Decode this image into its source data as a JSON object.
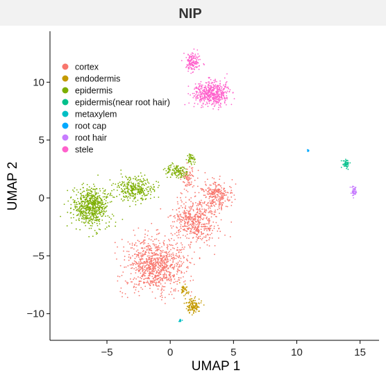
{
  "chart_data": {
    "type": "scatter",
    "title": "NIP",
    "xlabel": "UMAP 1",
    "ylabel": "UMAP 2",
    "xlim": [
      -9.5,
      16.5
    ],
    "ylim": [
      -12.3,
      14.4
    ],
    "x_ticks": [
      -5,
      0,
      5,
      10,
      15
    ],
    "y_ticks": [
      -10,
      -5,
      0,
      5,
      10
    ],
    "tick_labels_x": [
      "−5",
      "0",
      "5",
      "10",
      "15"
    ],
    "tick_labels_y": [
      "−10",
      "−5",
      "0",
      "5",
      "10"
    ],
    "grid": false,
    "legend_position": "top-left (inside)",
    "series": [
      {
        "name": "cortex",
        "color": "#F8766D",
        "clusters": [
          {
            "center": [
              -1.2,
              -5.8
            ],
            "spread": [
              2.2,
              2.1
            ],
            "count": 900
          },
          {
            "center": [
              2.0,
              -2.0
            ],
            "spread": [
              1.6,
              1.8
            ],
            "count": 500
          },
          {
            "center": [
              3.7,
              0.2
            ],
            "spread": [
              1.1,
              1.1
            ],
            "count": 250
          },
          {
            "center": [
              1.4,
              1.8
            ],
            "spread": [
              0.6,
              0.8
            ],
            "count": 80
          }
        ]
      },
      {
        "name": "endodermis",
        "color": "#C49A00",
        "clusters": [
          {
            "center": [
              1.8,
              -9.3
            ],
            "spread": [
              0.5,
              0.6
            ],
            "count": 120
          },
          {
            "center": [
              1.1,
              -8.0
            ],
            "spread": [
              0.3,
              0.5
            ],
            "count": 40
          }
        ]
      },
      {
        "name": "epidermis",
        "color": "#7CAE00",
        "clusters": [
          {
            "center": [
              -6.2,
              -0.8
            ],
            "spread": [
              1.3,
              1.5
            ],
            "count": 650
          },
          {
            "center": [
              -2.7,
              0.8
            ],
            "spread": [
              1.4,
              0.9
            ],
            "count": 300
          },
          {
            "center": [
              0.5,
              2.3
            ],
            "spread": [
              0.9,
              0.5
            ],
            "count": 120
          },
          {
            "center": [
              1.6,
              3.3
            ],
            "spread": [
              0.35,
              0.35
            ],
            "count": 40
          }
        ]
      },
      {
        "name": "epidermis(near root hair)",
        "color": "#00C08B",
        "clusters": [
          {
            "center": [
              13.9,
              2.9
            ],
            "spread": [
              0.25,
              0.35
            ],
            "count": 45
          }
        ]
      },
      {
        "name": "metaxylem",
        "color": "#00BFC4",
        "clusters": [
          {
            "center": [
              0.8,
              -10.6
            ],
            "spread": [
              0.1,
              0.12
            ],
            "count": 10
          }
        ]
      },
      {
        "name": "root cap",
        "color": "#00A9FF",
        "clusters": [
          {
            "center": [
              10.9,
              4.1
            ],
            "spread": [
              0.12,
              0.07
            ],
            "count": 12
          }
        ]
      },
      {
        "name": "root hair",
        "color": "#C77CFF",
        "clusters": [
          {
            "center": [
              14.5,
              0.6
            ],
            "spread": [
              0.18,
              0.4
            ],
            "count": 45
          }
        ]
      },
      {
        "name": "stele",
        "color": "#FF61CC",
        "clusters": [
          {
            "center": [
              3.3,
              9.0
            ],
            "spread": [
              1.3,
              1.0
            ],
            "count": 500
          },
          {
            "center": [
              1.8,
              11.8
            ],
            "spread": [
              0.6,
              0.8
            ],
            "count": 140
          }
        ]
      }
    ]
  }
}
